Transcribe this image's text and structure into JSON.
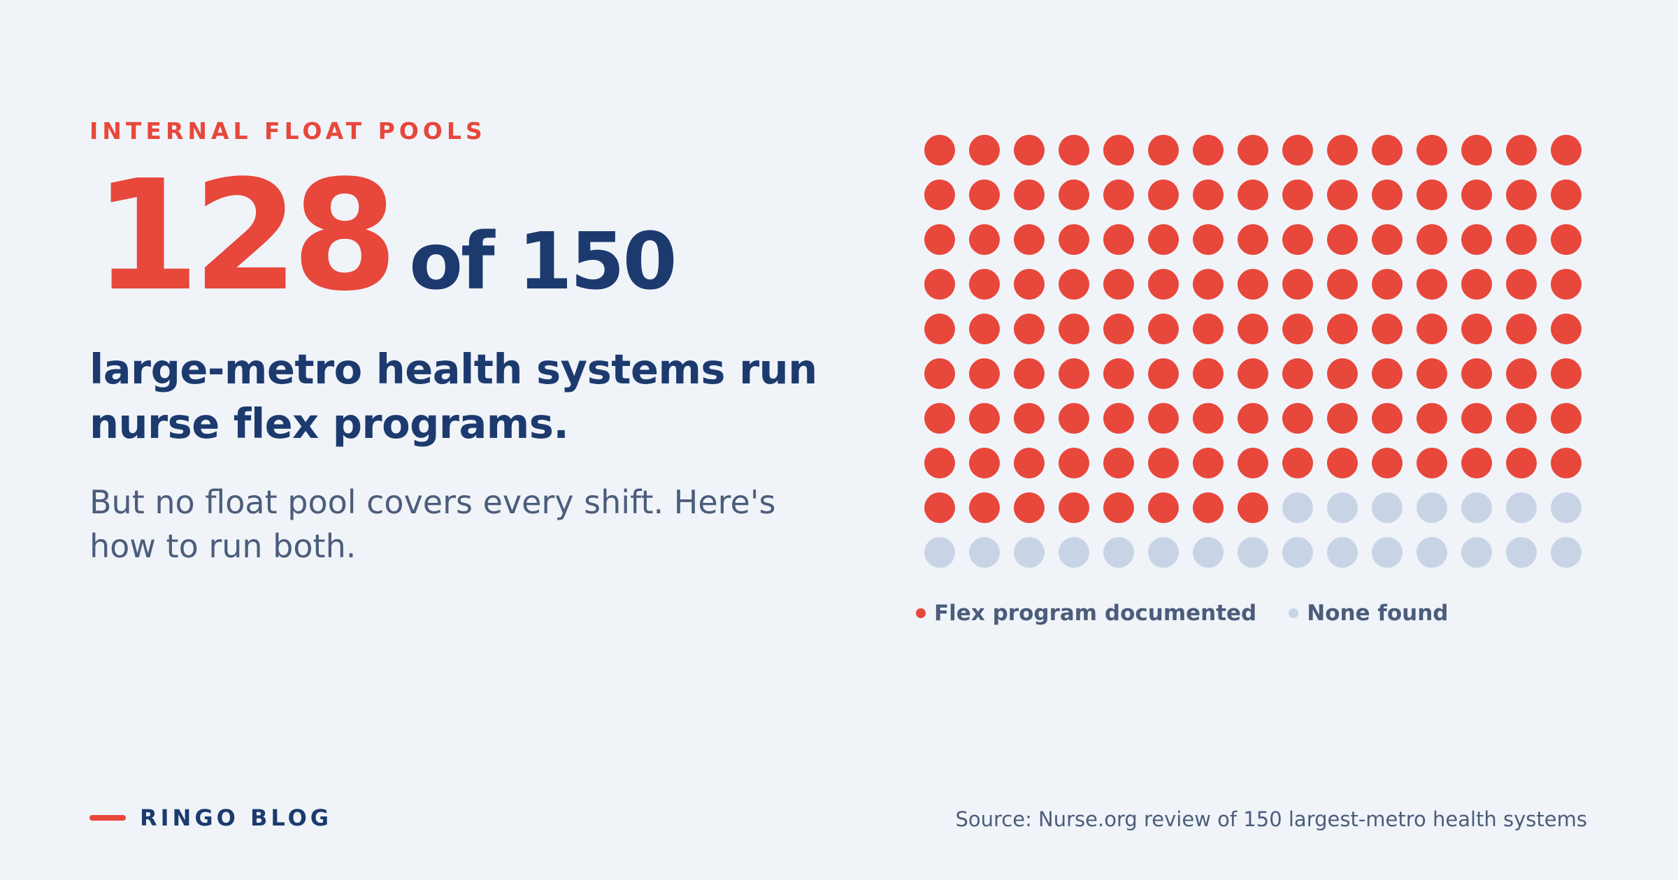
{
  "eyebrow": "INTERNAL FLOAT POOLS",
  "stat": {
    "count": "128",
    "of_total": "of 150"
  },
  "headline": "large-metro health systems run nurse flex programs.",
  "subhead": "But no float pool covers every shift. Here's how to run both.",
  "legend": {
    "documented": "Flex program documented",
    "none": "None found"
  },
  "footer": {
    "brand": "RINGO BLOG",
    "source": "Source: Nurse.org review of 150 largest-metro health systems"
  },
  "colors": {
    "accent": "#e8473b",
    "navy": "#1c3a6e",
    "muted_dot": "#c8d4e6",
    "background": "#f0f4f9"
  },
  "chart_data": {
    "type": "waffle",
    "total": 150,
    "columns": 15,
    "rows": 10,
    "series": [
      {
        "name": "Flex program documented",
        "value": 128,
        "color": "#e8473b"
      },
      {
        "name": "None found",
        "value": 22,
        "color": "#c8d4e6"
      }
    ],
    "legend_position": "bottom-left"
  }
}
